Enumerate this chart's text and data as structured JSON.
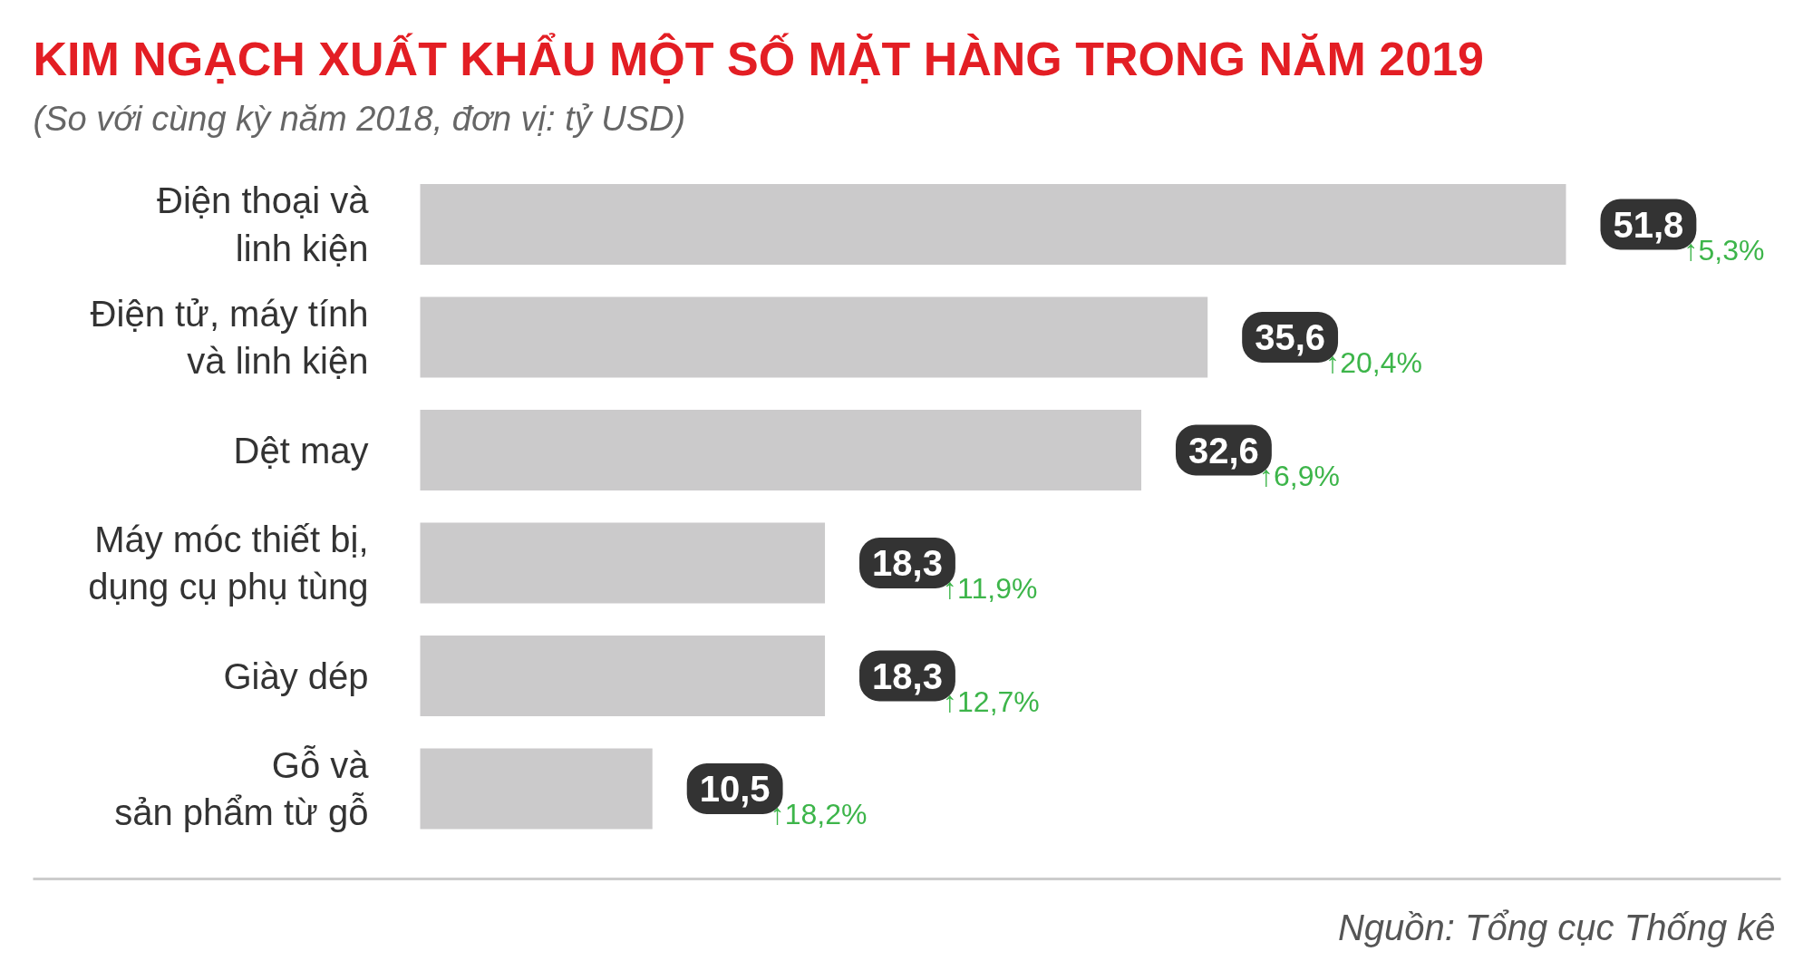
{
  "chart_data": {
    "type": "bar",
    "orientation": "horizontal",
    "title": "KIM NGẠCH XUẤT KHẨU MỘT SỐ MẶT HÀNG TRONG NĂM 2019",
    "subtitle": "(So với cùng kỳ năm 2018, đơn vị: tỷ USD)",
    "categories": [
      "Điện thoại và\nlinh kiện",
      "Điện tử, máy tính\nvà linh kiện",
      "Dệt may",
      "Máy móc thiết bị,\ndụng cụ phụ tùng",
      "Giày dép",
      "Gỗ và\nsản phẩm từ gỗ"
    ],
    "values": [
      51.8,
      35.6,
      32.6,
      18.3,
      18.3,
      10.5
    ],
    "value_labels": [
      "51,8",
      "35,6",
      "32,6",
      "18,3",
      "18,3",
      "10,5"
    ],
    "color": "#cbcacb",
    "grid": false,
    "annotations": [
      "↑5,3%",
      "↑20,4%",
      "↑6,9%",
      "↑11,9%",
      "↑12,7%",
      "↑18,2%",
      "Nguồn: Tổng cục Thống kê"
    ]
  }
}
